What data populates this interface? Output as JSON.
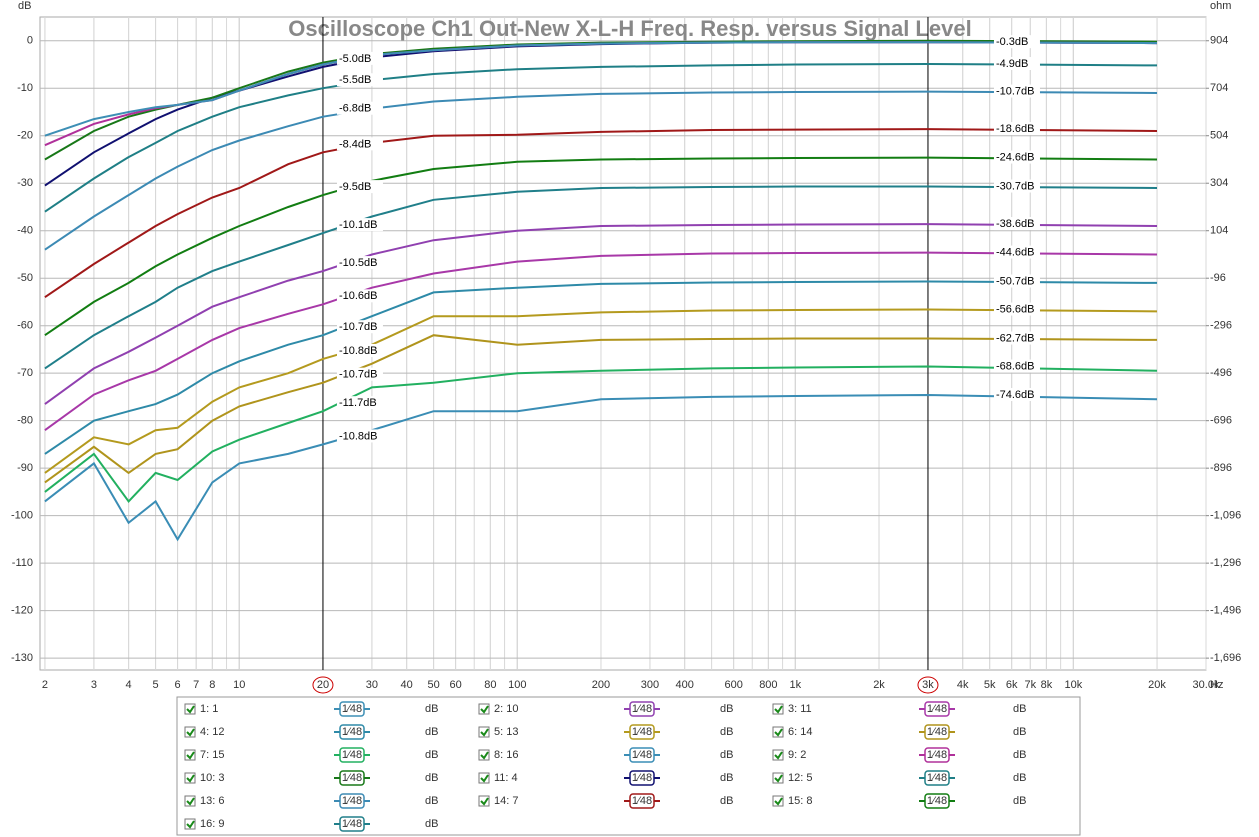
{
  "chart_data": {
    "type": "line",
    "title": "Oscilloscope Ch1 Out-New X-L-H Freq. Resp. versus Signal Level",
    "y_label": "dB",
    "y2_label": "ohm",
    "x_label": "Hz",
    "log_x": true,
    "grid": true,
    "minor_grid": true,
    "xlim": [
      1.92,
      30000
    ],
    "ylim": [
      -132.5,
      5
    ],
    "y2lim": [
      -1746,
      1004
    ],
    "xticks": [
      2,
      3,
      4,
      5,
      6,
      7,
      8,
      10,
      20,
      30,
      40,
      50,
      60,
      80,
      100,
      200,
      300,
      400,
      600,
      800,
      {
        "value": 1000,
        "label": "1k"
      },
      {
        "value": 2000,
        "label": "2k"
      },
      {
        "value": 3000,
        "label": "3k"
      },
      {
        "value": 4000,
        "label": "4k"
      },
      {
        "value": 5000,
        "label": "5k"
      },
      {
        "value": 6000,
        "label": "6k"
      },
      {
        "value": 7000,
        "label": "7k"
      },
      {
        "value": 8000,
        "label": "8k"
      },
      {
        "value": 10000,
        "label": "10k"
      },
      {
        "value": 20000,
        "label": "20k"
      },
      {
        "value": 30000,
        "label": "30.0k"
      }
    ],
    "yticks": [
      0,
      -10,
      -20,
      -30,
      -40,
      -50,
      -60,
      -70,
      -80,
      -90,
      -100,
      -110,
      -120,
      -130
    ],
    "y2ticks": [
      904,
      704,
      504,
      304,
      104,
      -96,
      -296,
      -496,
      -696,
      -896,
      {
        "value": -1096,
        "label": "-1,096"
      },
      {
        "value": -1296,
        "label": "-1,296"
      },
      {
        "value": -1496,
        "label": "-1,496"
      },
      {
        "value": -1696,
        "label": "-1,696"
      }
    ],
    "cursors": [
      20,
      3000
    ],
    "legend_smoothing": "1⁄48",
    "legend_unit": "dB",
    "x": [
      2,
      3,
      4,
      5,
      6,
      8,
      10,
      15,
      20,
      30,
      50,
      100,
      200,
      500,
      1000,
      3000,
      20000
    ],
    "series": [
      {
        "name": "1: 1",
        "color": "#3d8fb5",
        "values": [
          -20,
          -16.5,
          -15,
          -14,
          -13.5,
          -12.5,
          -10.5,
          -7,
          -5,
          -3,
          -2,
          -1,
          -0.6,
          -0.4,
          -0.3,
          -0.3,
          -0.5
        ]
      },
      {
        "name": "2: 10",
        "color": "#9040b0",
        "values": [
          -76.5,
          -69,
          -65.5,
          -62.5,
          -60,
          -56,
          -54,
          -50.5,
          -48.5,
          -45,
          -42,
          -40,
          -39,
          -38.8,
          -38.7,
          -38.6,
          -39
        ],
        "readouts": [
          {
            "value": -10.5,
            "label": "-10.5dB"
          },
          {
            "value": -38.6,
            "label": "-38.6dB"
          }
        ]
      },
      {
        "name": "3: 11",
        "color": "#a838a8",
        "values": [
          -82,
          -74.5,
          -71.5,
          -69.5,
          -67,
          -63,
          -60.5,
          -57.5,
          -55.5,
          -52,
          -49,
          -46.5,
          -45.3,
          -44.8,
          -44.7,
          -44.6,
          -45
        ],
        "readouts": [
          {
            "value": -10.6,
            "label": "-10.6dB"
          },
          {
            "value": -44.6,
            "label": "-44.6dB"
          }
        ]
      },
      {
        "name": "4: 12",
        "color": "#2e8aa8",
        "values": [
          -87,
          -80,
          -78,
          -76.5,
          -74.5,
          -70,
          -67.5,
          -64,
          -62,
          -58,
          -53,
          -52,
          -51.2,
          -50.9,
          -50.8,
          -50.7,
          -51
        ],
        "readouts": [
          {
            "value": -10.7,
            "label": "-10.7dB"
          },
          {
            "value": -50.7,
            "label": "-50.7dB"
          }
        ]
      },
      {
        "name": "5: 13",
        "color": "#b49a1e",
        "values": [
          -91,
          -83.5,
          -85,
          -82,
          -81.5,
          -76,
          -73,
          -70,
          -67,
          -64,
          -58,
          -58,
          -57.2,
          -56.8,
          -56.7,
          -56.6,
          -57
        ],
        "readouts": [
          {
            "value": -10.8,
            "label": "-10.8dB"
          },
          {
            "value": -56.6,
            "label": "-56.6dB"
          }
        ]
      },
      {
        "name": "6: 14",
        "color": "#b0941c",
        "values": [
          -93,
          -85.5,
          -91,
          -87,
          -86,
          -80,
          -77,
          -74,
          -72,
          -68,
          -62,
          -64,
          -63,
          -62.8,
          -62.7,
          -62.7,
          -63
        ],
        "readouts": [
          {
            "value": -10.7,
            "label": "-10.7dB"
          },
          {
            "value": -62.7,
            "label": "-62.7dB"
          }
        ]
      },
      {
        "name": "7: 15",
        "color": "#22b060",
        "values": [
          -95,
          -87,
          -97,
          -91,
          -92.5,
          -86.5,
          -84,
          -80.5,
          -78,
          -73,
          -72,
          -70,
          -69.5,
          -69,
          -68.8,
          -68.6,
          -69.5
        ],
        "readouts": [
          {
            "value": -11.7,
            "label": "-11.7dB"
          },
          {
            "value": -68.6,
            "label": "-68.6dB"
          }
        ]
      },
      {
        "name": "8: 16",
        "color": "#3a8db5",
        "values": [
          -97,
          -89,
          -101.5,
          -97,
          -105,
          -93,
          -89,
          -87,
          -85,
          -82,
          -78,
          -78,
          -75.5,
          -75,
          -74.8,
          -74.6,
          -75.5
        ],
        "readouts": [
          {
            "value": -10.8,
            "label": "-10.8dB"
          },
          {
            "value": -74.6,
            "label": "-74.6dB"
          }
        ]
      },
      {
        "name": "9: 2",
        "color": "#b0309a",
        "values": [
          -22,
          -17.5,
          -15.5,
          -14.2,
          -13.5,
          -12.5,
          -10.5,
          -7,
          -5,
          -3,
          -2,
          -1,
          -0.6,
          -0.4,
          -0.3,
          -0.3,
          -0.5
        ]
      },
      {
        "name": "10: 3",
        "color": "#187818",
        "values": [
          -25,
          -19,
          -16,
          -14.5,
          -13.5,
          -12,
          -10,
          -6.5,
          -4.6,
          -2.8,
          -1.7,
          -0.8,
          -0.4,
          -0.2,
          -0.1,
          0,
          -0.2
        ]
      },
      {
        "name": "11: 4",
        "color": "#101070",
        "values": [
          -30.5,
          -23.5,
          -19.5,
          -16.5,
          -14.5,
          -12,
          -10.5,
          -7.5,
          -5.5,
          -3.5,
          -2.2,
          -1.2,
          -0.7,
          -0.4,
          -0.3,
          -0.3,
          -0.5
        ],
        "readouts": [
          {
            "value": -5.0,
            "label": "-5.0dB"
          },
          {
            "value": -0.3,
            "label": "-0.3dB"
          }
        ]
      },
      {
        "name": "12: 5",
        "color": "#1f7f86",
        "values": [
          -36,
          -29,
          -24.5,
          -21.5,
          -19,
          -16,
          -14,
          -11.5,
          -10,
          -8.3,
          -7,
          -6,
          -5.5,
          -5.2,
          -5,
          -4.9,
          -5.2
        ],
        "readouts": [
          {
            "value": -5.5,
            "label": "-5.5dB"
          },
          {
            "value": -4.9,
            "label": "-4.9dB"
          }
        ]
      },
      {
        "name": "13: 6",
        "color": "#3c8ab4",
        "values": [
          -44,
          -37,
          -32.5,
          -29,
          -26.5,
          -23,
          -21,
          -18,
          -16,
          -14.3,
          -12.8,
          -11.8,
          -11.2,
          -10.9,
          -10.8,
          -10.7,
          -11
        ],
        "readouts": [
          {
            "value": -6.8,
            "label": "-6.8dB"
          },
          {
            "value": -10.7,
            "label": "-10.7dB"
          }
        ]
      },
      {
        "name": "14: 7",
        "color": "#a01818",
        "values": [
          -54,
          -47,
          -42.5,
          -39,
          -36.5,
          -33,
          -31,
          -26,
          -23.5,
          -21.5,
          -20,
          -19.8,
          -19.2,
          -18.8,
          -18.7,
          -18.6,
          -19
        ],
        "readouts": [
          {
            "value": -8.4,
            "label": "-8.4dB"
          },
          {
            "value": -18.6,
            "label": "-18.6dB"
          }
        ]
      },
      {
        "name": "15: 8",
        "color": "#127d12",
        "values": [
          -62,
          -55,
          -51,
          -47.5,
          -45,
          -41.5,
          -39,
          -35,
          -32.5,
          -29.5,
          -27,
          -25.5,
          -25,
          -24.8,
          -24.7,
          -24.6,
          -25
        ],
        "readouts": [
          {
            "value": -9.5,
            "label": "-9.5dB"
          },
          {
            "value": -24.6,
            "label": "-24.6dB"
          }
        ]
      },
      {
        "name": "16: 9",
        "color": "#207f8a",
        "values": [
          -69,
          -62,
          -58,
          -55,
          -52,
          -48.5,
          -46.5,
          -43,
          -40.5,
          -37,
          -33.5,
          -31.8,
          -31,
          -30.8,
          -30.7,
          -30.7,
          -31
        ],
        "readouts": [
          {
            "value": -10.1,
            "label": "-10.1dB"
          },
          {
            "value": -30.7,
            "label": "-30.7dB"
          }
        ]
      }
    ]
  }
}
